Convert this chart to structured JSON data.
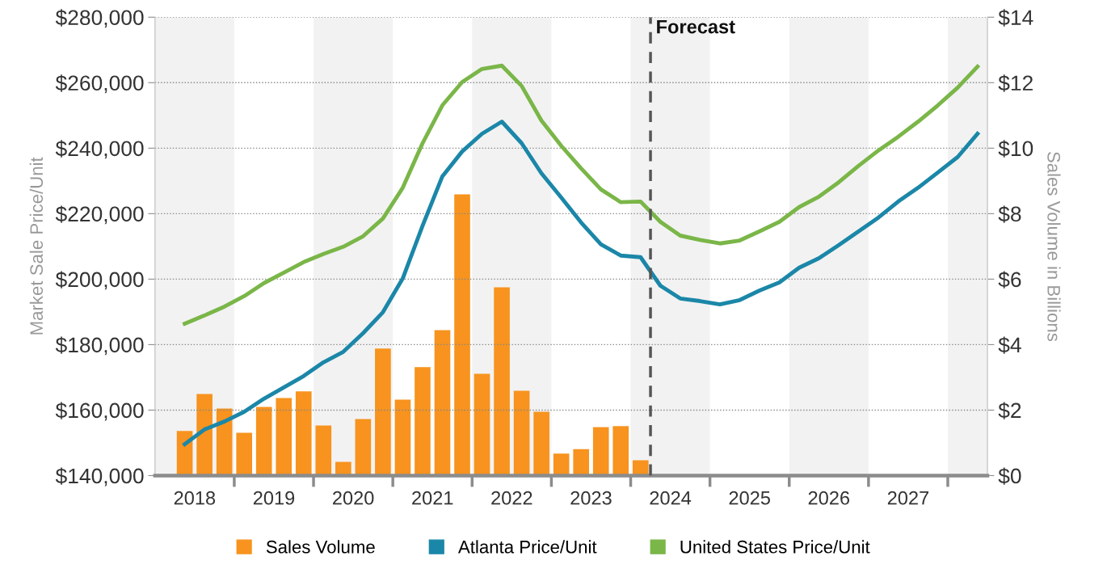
{
  "chart_data": {
    "type": "line",
    "ylabel": "Market Sale Price/Unit",
    "y2label": "Sales Volume in Billions",
    "xlim": [
      2018,
      2028.5
    ],
    "xticks": [
      {
        "value": 2018.5,
        "label": "2018"
      },
      {
        "value": 2019,
        "label": null
      },
      {
        "value": 2019.5,
        "label": "2019"
      },
      {
        "value": 2020,
        "label": null
      },
      {
        "value": 2020.5,
        "label": "2020"
      },
      {
        "value": 2021,
        "label": null
      },
      {
        "value": 2021.5,
        "label": "2021"
      },
      {
        "value": 2022,
        "label": null
      },
      {
        "value": 2022.5,
        "label": "2022"
      },
      {
        "value": 2023,
        "label": null
      },
      {
        "value": 2023.5,
        "label": "2023"
      },
      {
        "value": 2024,
        "label": null
      },
      {
        "value": 2024.5,
        "label": "2024"
      },
      {
        "value": 2025,
        "label": null
      },
      {
        "value": 2025.5,
        "label": "2025"
      },
      {
        "value": 2026,
        "label": null
      },
      {
        "value": 2026.5,
        "label": "2026"
      },
      {
        "value": 2027,
        "label": null
      },
      {
        "value": 2027.5,
        "label": "2027"
      },
      {
        "value": 2028,
        "label": null
      }
    ],
    "ylim": [
      140000,
      280000
    ],
    "yticks": [
      {
        "value": 140000,
        "label": "$140,000"
      },
      {
        "value": 160000,
        "label": "$160,000"
      },
      {
        "value": 180000,
        "label": "$180,000"
      },
      {
        "value": 200000,
        "label": "$200,000"
      },
      {
        "value": 220000,
        "label": "$220,000"
      },
      {
        "value": 240000,
        "label": "$240,000"
      },
      {
        "value": 260000,
        "label": "$260,000"
      },
      {
        "value": 280000,
        "label": "$280,000"
      }
    ],
    "y2lim": [
      0,
      14
    ],
    "y2ticks": [
      {
        "value": 0,
        "label": "$0"
      },
      {
        "value": 2,
        "label": "$2"
      },
      {
        "value": 4,
        "label": "$4"
      },
      {
        "value": 6,
        "label": "$6"
      },
      {
        "value": 8,
        "label": "$8"
      },
      {
        "value": 10,
        "label": "$10"
      },
      {
        "value": 12,
        "label": "$12"
      },
      {
        "value": 14,
        "label": "$14"
      }
    ],
    "grid": "y",
    "legend": "bottom",
    "ref_lines": [
      {
        "axis": "x",
        "value": 2024.25,
        "label": "Forecast",
        "color": "#555555",
        "line_style": "dashed"
      }
    ],
    "bands": [
      {
        "axis": "x",
        "from": 2018,
        "to": 2019,
        "color": "#f2f2f2"
      },
      {
        "axis": "x",
        "from": 2020,
        "to": 2021,
        "color": "#f2f2f2"
      },
      {
        "axis": "x",
        "from": 2022,
        "to": 2023,
        "color": "#f2f2f2"
      },
      {
        "axis": "x",
        "from": 2024,
        "to": 2025,
        "color": "#f2f2f2"
      },
      {
        "axis": "x",
        "from": 2026,
        "to": 2027,
        "color": "#f2f2f2"
      },
      {
        "axis": "x",
        "from": 2028,
        "to": 2028.5,
        "color": "#f2f2f2"
      }
    ],
    "series": [
      {
        "name": "Sales Volume",
        "type": "bar",
        "axis": "y2",
        "color": "#f7931e",
        "x": [
          2018.375,
          2018.625,
          2018.875,
          2019.125,
          2019.375,
          2019.625,
          2019.875,
          2020.125,
          2020.375,
          2020.625,
          2020.875,
          2021.125,
          2021.375,
          2021.625,
          2021.875,
          2022.125,
          2022.375,
          2022.625,
          2022.875,
          2023.125,
          2023.375,
          2023.625,
          2023.875,
          2024.125
        ],
        "values": [
          1.36,
          2.49,
          2.05,
          1.31,
          2.1,
          2.37,
          2.57,
          1.53,
          0.42,
          1.73,
          3.88,
          2.32,
          3.31,
          4.44,
          8.59,
          3.11,
          5.75,
          2.59,
          1.95,
          0.67,
          0.81,
          1.48,
          1.51,
          0.47
        ]
      },
      {
        "name": "Atlanta Price/Unit",
        "color": "#1b87a8",
        "x": [
          2018.375,
          2018.625,
          2018.875,
          2019.125,
          2019.375,
          2019.625,
          2019.875,
          2020.125,
          2020.375,
          2020.625,
          2020.875,
          2021.125,
          2021.375,
          2021.625,
          2021.875,
          2022.125,
          2022.375,
          2022.625,
          2022.875,
          2023.125,
          2023.375,
          2023.625,
          2023.875,
          2024.125,
          2024.375,
          2024.625,
          2024.875,
          2025.125,
          2025.375,
          2025.625,
          2025.875,
          2026.125,
          2026.375,
          2026.625,
          2026.875,
          2027.125,
          2027.375,
          2027.625,
          2027.875,
          2028.125,
          2028.375
        ],
        "values": [
          149600,
          154100,
          156500,
          159500,
          163500,
          166900,
          170400,
          174600,
          177800,
          183500,
          189900,
          200200,
          216300,
          231400,
          239000,
          244400,
          248100,
          241500,
          232300,
          224900,
          217300,
          210600,
          207200,
          206700,
          198000,
          194100,
          193300,
          192300,
          193600,
          196500,
          199000,
          203500,
          206400,
          210400,
          214600,
          218800,
          223700,
          227900,
          232600,
          237300,
          244400
        ]
      },
      {
        "name": "United States Price/Unit",
        "color": "#7ab648",
        "x": [
          2018.375,
          2018.625,
          2018.875,
          2019.125,
          2019.375,
          2019.625,
          2019.875,
          2020.125,
          2020.375,
          2020.625,
          2020.875,
          2021.125,
          2021.375,
          2021.625,
          2021.875,
          2022.125,
          2022.375,
          2022.625,
          2022.875,
          2023.125,
          2023.375,
          2023.625,
          2023.875,
          2024.125,
          2024.375,
          2024.625,
          2024.875,
          2025.125,
          2025.375,
          2025.625,
          2025.875,
          2026.125,
          2026.375,
          2026.625,
          2026.875,
          2027.125,
          2027.375,
          2027.625,
          2027.875,
          2028.125,
          2028.375
        ],
        "values": [
          186400,
          188900,
          191600,
          194800,
          198800,
          202000,
          205200,
          207700,
          209900,
          213100,
          218500,
          227900,
          241500,
          253100,
          260200,
          264200,
          265200,
          259000,
          248400,
          240700,
          233800,
          227400,
          223500,
          223700,
          217500,
          213300,
          212000,
          210900,
          211800,
          214600,
          217500,
          222000,
          225200,
          229600,
          234600,
          239300,
          243500,
          248100,
          253100,
          258500,
          264900
        ]
      }
    ]
  }
}
